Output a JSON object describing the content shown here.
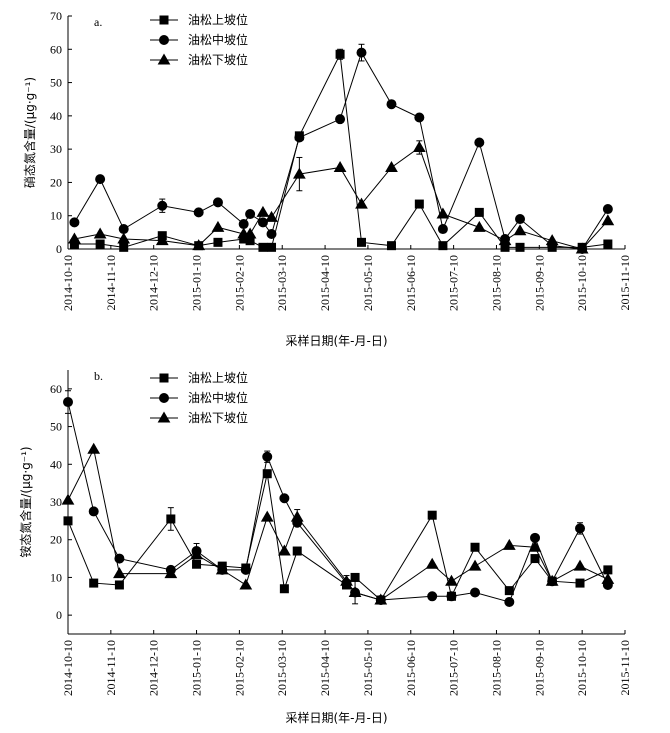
{
  "chart_data": [
    {
      "type": "line",
      "panel_label": "a.",
      "ylabel": "硝态氮含量/(μg·g⁻¹)",
      "xlabel": "采样日期(年-月-日)",
      "ylim": [
        0,
        70
      ],
      "yticks": [
        0,
        10,
        20,
        30,
        40,
        50,
        60,
        70
      ],
      "xticks": [
        "2014-10-10",
        "2014-11-10",
        "2014-12-10",
        "2015-01-10",
        "2015-02-10",
        "2015-03-10",
        "2015-04-10",
        "2015-05-10",
        "2015-06-10",
        "2015-07-10",
        "2015-08-10",
        "2015-09-10",
        "2015-10-10",
        "2015-11-10"
      ],
      "legend": [
        "油松上坡位",
        "油松中坡位",
        "油松下坡位"
      ],
      "series": [
        {
          "name": "油松上坡位",
          "marker": "square",
          "x": [
            0.15,
            0.75,
            1.3,
            2.2,
            3.05,
            3.5,
            4.1,
            4.25,
            4.55,
            4.75,
            5.4,
            6.35,
            6.85,
            7.55,
            8.2,
            8.75,
            9.6,
            10.2,
            10.55,
            11.3,
            12.0,
            12.6
          ],
          "y": [
            1.5,
            1.5,
            0.5,
            4,
            1,
            2,
            3,
            2.5,
            0.5,
            0.5,
            34,
            58.5,
            2,
            1,
            13.5,
            1,
            11,
            0.5,
            0.5,
            0.5,
            0.5,
            1.5
          ],
          "err": [
            0,
            0,
            0,
            0,
            0,
            0,
            0,
            0,
            0,
            0,
            0,
            1.5,
            0,
            0,
            0,
            0,
            0,
            0,
            0,
            0,
            0,
            0
          ]
        },
        {
          "name": "油松中坡位",
          "marker": "circle",
          "x": [
            0.15,
            0.75,
            1.3,
            2.2,
            3.05,
            3.5,
            4.1,
            4.25,
            4.55,
            4.75,
            5.4,
            6.35,
            6.85,
            7.55,
            8.2,
            8.75,
            9.6,
            10.2,
            10.55,
            11.3,
            12.0,
            12.6
          ],
          "y": [
            8,
            21,
            6,
            13,
            11,
            14,
            7.5,
            10.5,
            8,
            4.5,
            33.5,
            39,
            59,
            43.5,
            39.5,
            6,
            32,
            3,
            9,
            1,
            0,
            12
          ],
          "err": [
            0,
            0,
            0,
            2,
            0,
            0,
            0,
            0,
            0,
            0,
            0,
            0,
            2.5,
            0,
            0,
            0,
            0,
            0,
            0,
            0,
            0,
            0
          ]
        },
        {
          "name": "油松下坡位",
          "marker": "triangle",
          "x": [
            0.15,
            0.75,
            1.3,
            2.2,
            3.05,
            3.5,
            4.1,
            4.25,
            4.55,
            4.75,
            5.4,
            6.35,
            6.85,
            7.55,
            8.2,
            8.75,
            9.6,
            10.2,
            10.55,
            11.3,
            12.0,
            12.6
          ],
          "y": [
            3,
            4.5,
            3,
            2.5,
            1,
            6.5,
            4.5,
            4.5,
            11,
            9.5,
            22.5,
            24.5,
            13.5,
            24.5,
            30.5,
            10.5,
            6.5,
            2.5,
            5.5,
            2.5,
            0,
            8.5
          ],
          "err": [
            0,
            0,
            0,
            0,
            0,
            0,
            0,
            0,
            0,
            0,
            5,
            0,
            0,
            0,
            2,
            0,
            0,
            0,
            0,
            0,
            0,
            0
          ]
        }
      ]
    },
    {
      "type": "line",
      "panel_label": "b.",
      "ylabel": "铵态氮含量/(μg·g⁻¹)",
      "xlabel": "采样日期(年-月-日)",
      "ylim": [
        -5,
        65
      ],
      "yticks": [
        0,
        10,
        20,
        30,
        40,
        50,
        60
      ],
      "xticks": [
        "2014-10-10",
        "2014-11-10",
        "2014-12-10",
        "2015-01-10",
        "2015-02-10",
        "2015-03-10",
        "2015-04-10",
        "2015-05-10",
        "2015-06-10",
        "2015-07-10",
        "2015-08-10",
        "2015-09-10",
        "2015-10-10",
        "2015-11-10"
      ],
      "legend": [
        "油松上坡位",
        "油松中坡位",
        "油松下坡位"
      ],
      "series": [
        {
          "name": "油松上坡位",
          "marker": "square",
          "x": [
            0.0,
            0.6,
            1.2,
            2.4,
            3.0,
            3.6,
            4.15,
            4.65,
            5.05,
            5.35,
            6.5,
            6.7,
            7.3,
            8.5,
            8.95,
            9.5,
            10.3,
            10.9,
            11.3,
            11.95,
            12.6
          ],
          "y": [
            25,
            8.5,
            8,
            25.5,
            13.5,
            13,
            12.5,
            37.5,
            7,
            17,
            8,
            10,
            4,
            26.5,
            5,
            18,
            6.5,
            15,
            9,
            8.5,
            12
          ],
          "err": [
            0,
            0,
            0,
            3,
            0,
            0,
            0,
            0,
            0,
            0,
            0,
            0,
            0,
            0,
            0,
            0,
            0,
            0,
            0,
            0,
            0
          ]
        },
        {
          "name": "油松中坡位",
          "marker": "circle",
          "x": [
            0.0,
            0.6,
            1.2,
            2.4,
            3.0,
            3.6,
            4.15,
            4.65,
            5.05,
            5.35,
            6.5,
            6.7,
            7.3,
            8.5,
            8.95,
            9.5,
            10.3,
            10.9,
            11.3,
            11.95,
            12.6
          ],
          "y": [
            56.5,
            27.5,
            15,
            12,
            17,
            12,
            12,
            42,
            31,
            24.5,
            8.5,
            6,
            4,
            5,
            5,
            6,
            3.5,
            20.5,
            9,
            23,
            8
          ],
          "err": [
            3,
            0,
            0,
            0,
            2,
            0,
            0,
            1.5,
            0,
            0,
            0,
            0,
            0,
            0,
            0,
            0,
            0,
            0,
            0,
            1.5,
            0
          ]
        },
        {
          "name": "油松下坡位",
          "marker": "triangle",
          "x": [
            0.0,
            0.6,
            1.2,
            2.4,
            3.0,
            3.6,
            4.15,
            4.65,
            5.05,
            5.35,
            6.5,
            6.7,
            7.3,
            8.5,
            8.95,
            9.5,
            10.3,
            10.9,
            11.3,
            11.95,
            12.6
          ],
          "y": [
            30.5,
            44,
            11,
            11,
            16,
            12,
            8,
            26,
            17,
            26,
            9,
            6,
            4,
            13.5,
            9,
            13,
            18.5,
            18,
            9,
            13,
            9.5
          ],
          "err": [
            0,
            0,
            0,
            0,
            0,
            0,
            0,
            0,
            0,
            2,
            1.5,
            3,
            0,
            0,
            0,
            0,
            0,
            0,
            0,
            0,
            0
          ]
        }
      ]
    }
  ]
}
